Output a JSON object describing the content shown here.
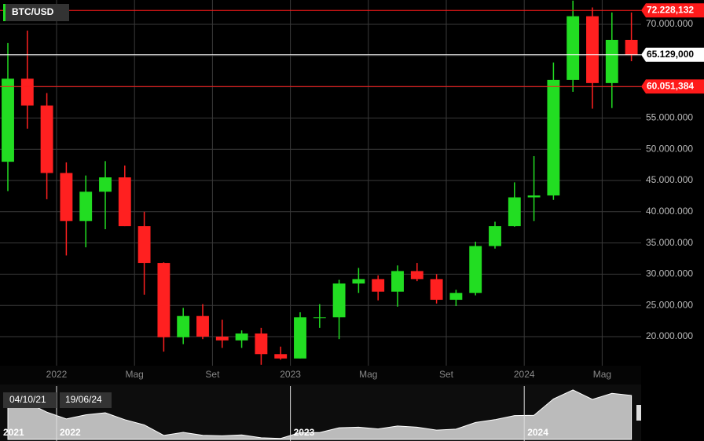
{
  "chart_data": {
    "type": "candlestick",
    "title": "BTC/USD",
    "categories": [
      null,
      null,
      null,
      "2022",
      null,
      null,
      null,
      "Mag",
      null,
      null,
      null,
      "Set",
      null,
      null,
      null,
      "2023",
      null,
      null,
      null,
      "Mag",
      null,
      null,
      null,
      "Set",
      null,
      null,
      null,
      "2024",
      null,
      null,
      null,
      "Mag",
      null
    ],
    "series": [
      {
        "up_color": "#22dd22",
        "down_color": "#ff2020",
        "open": [
          48000000,
          61300000,
          57000000,
          46200000,
          38500000,
          43200000,
          45500000,
          37700000,
          31800000,
          19900000,
          23300000,
          20000000,
          19400000,
          20500000,
          17200000,
          16500000,
          23100000,
          23100000,
          28500000,
          29200000,
          27200000,
          30500000,
          29200000,
          25900000,
          27000000,
          34500000,
          37700000,
          42300000,
          42600000,
          61100000,
          71300000,
          60600000,
          67500000
        ],
        "high": [
          67000000,
          69000000,
          59000000,
          47900000,
          45800000,
          48100000,
          47400000,
          40000000,
          31900000,
          24600000,
          25200000,
          22700000,
          21000000,
          21400000,
          18400000,
          23900000,
          25200000,
          29100000,
          31000000,
          29800000,
          31400000,
          31800000,
          30000000,
          27500000,
          35200000,
          38400000,
          44700000,
          48900000,
          63900000,
          73800000,
          72700000,
          71900000,
          71900000
        ],
        "low": [
          43300000,
          53300000,
          42000000,
          33000000,
          34300000,
          37200000,
          37700000,
          26700000,
          17600000,
          18800000,
          19600000,
          18200000,
          18200000,
          15500000,
          16300000,
          16500000,
          21400000,
          19600000,
          27000000,
          25800000,
          24800000,
          28900000,
          25300000,
          24900000,
          26600000,
          34100000,
          37600000,
          38500000,
          41900000,
          59200000,
          56500000,
          56600000,
          64100000
        ],
        "close": [
          61300000,
          57000000,
          46200000,
          38500000,
          43200000,
          45500000,
          37700000,
          31800000,
          19900000,
          23300000,
          20000000,
          19400000,
          20500000,
          17200000,
          16500000,
          23100000,
          23100000,
          28500000,
          29200000,
          27200000,
          30500000,
          29200000,
          25900000,
          27000000,
          34500000,
          37700000,
          42300000,
          42600000,
          61100000,
          71300000,
          60600000,
          67500000,
          65100000
        ]
      }
    ],
    "ylim": [
      15350000,
      73900000
    ],
    "yticks": [
      {
        "value": 20000000,
        "label": "20.000.000"
      },
      {
        "value": 25000000,
        "label": "25.000.000"
      },
      {
        "value": 30000000,
        "label": "30.000.000"
      },
      {
        "value": 35000000,
        "label": "35.000.000"
      },
      {
        "value": 40000000,
        "label": "40.000.000"
      },
      {
        "value": 45000000,
        "label": "45.000.000"
      },
      {
        "value": 50000000,
        "label": "50.000.000"
      },
      {
        "value": 55000000,
        "label": "55.000.000"
      },
      {
        "value": 60000000,
        "label": "60.000.000"
      },
      {
        "value": 65000000,
        "label": "65.000.000"
      },
      {
        "value": 70000000,
        "label": "70.000.000"
      }
    ],
    "grid": true,
    "levels": [
      {
        "value": 72228132,
        "label": "72.228,132",
        "color": "#ff1a1a"
      },
      {
        "value": 65129000,
        "label": "65.129,000",
        "color": "#ffffff"
      },
      {
        "value": 60051384,
        "label": "60.051,384",
        "color": "#ff1a1a"
      }
    ],
    "navigator": {
      "range_start": "04/10/21",
      "range_end": "19/06/24",
      "years": [
        "2021",
        "2022",
        "2023",
        "2024"
      ]
    }
  }
}
